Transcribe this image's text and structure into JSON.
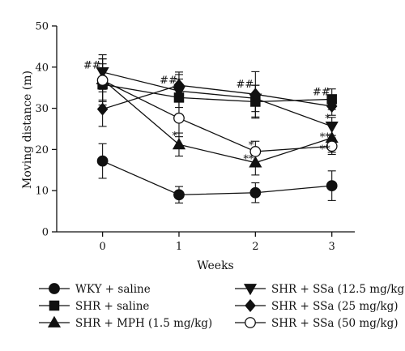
{
  "chart_data": {
    "type": "line",
    "title": "",
    "xlabel": "Weeks",
    "ylabel": "Moving distance (m)",
    "x": [
      0,
      1,
      2,
      3
    ],
    "x_ticks": [
      "0",
      "1",
      "2",
      "3"
    ],
    "xlim": [
      -0.6,
      3.3
    ],
    "ylim": [
      0,
      50
    ],
    "y_ticks": [
      0,
      10,
      20,
      30,
      40,
      50
    ],
    "grid": false,
    "legend_position": "bottom",
    "series": [
      {
        "name": "WKY + saline",
        "marker": "circle",
        "fill": "#111111",
        "values": [
          17.2,
          9.0,
          9.5,
          11.2
        ],
        "errors": [
          4.2,
          2.0,
          2.4,
          3.6
        ]
      },
      {
        "name": "SHR + saline",
        "marker": "square",
        "fill": "#111111",
        "values": [
          35.8,
          32.6,
          31.6,
          32.2
        ],
        "errors": [
          5.0,
          4.5,
          4.0,
          2.5
        ]
      },
      {
        "name": "SHR + MPH (1.5 mg/kg)",
        "marker": "triangle-up",
        "fill": "#111111",
        "values": [
          37.0,
          21.2,
          16.8,
          22.8
        ],
        "errors": [
          5.0,
          2.8,
          3.0,
          3.5
        ]
      },
      {
        "name": "SHR + SSa (12.5 mg/kg)",
        "marker": "triangle-down",
        "fill": "#111111",
        "values": [
          38.8,
          34.2,
          32.4,
          25.6
        ],
        "errors": [
          4.2,
          4.0,
          3.2,
          2.2
        ]
      },
      {
        "name": "SHR + SSa (25 mg/kg)",
        "marker": "diamond",
        "fill": "#111111",
        "values": [
          29.8,
          35.6,
          33.4,
          30.5
        ],
        "errors": [
          4.2,
          3.2,
          5.5,
          2.2
        ]
      },
      {
        "name": "SHR + SSa (50 mg/kg)",
        "marker": "circle-open",
        "fill": "#ffffff",
        "values": [
          36.8,
          27.6,
          19.5,
          20.8
        ],
        "errors": [
          5.2,
          4.5,
          2.5,
          2.0
        ]
      }
    ],
    "annotations": [
      {
        "text": "##",
        "x": 0,
        "y": 40.5,
        "anchor": "end"
      },
      {
        "text": "##",
        "x": 1,
        "y": 36.8,
        "anchor": "end"
      },
      {
        "text": "##",
        "x": 2,
        "y": 35.8,
        "anchor": "end"
      },
      {
        "text": "##",
        "x": 3,
        "y": 34.0,
        "anchor": "end"
      },
      {
        "text": "*",
        "x": 1,
        "y": 23.2,
        "anchor": "end"
      },
      {
        "text": "*",
        "x": 2,
        "y": 21.0,
        "anchor": "end"
      },
      {
        "text": "**",
        "x": 2,
        "y": 17.6,
        "anchor": "end"
      },
      {
        "text": "*",
        "x": 3,
        "y": 27.5,
        "anchor": "end"
      },
      {
        "text": "**",
        "x": 3,
        "y": 22.9,
        "anchor": "end"
      },
      {
        "text": "**",
        "x": 3,
        "y": 20.0,
        "anchor": "end"
      }
    ]
  }
}
